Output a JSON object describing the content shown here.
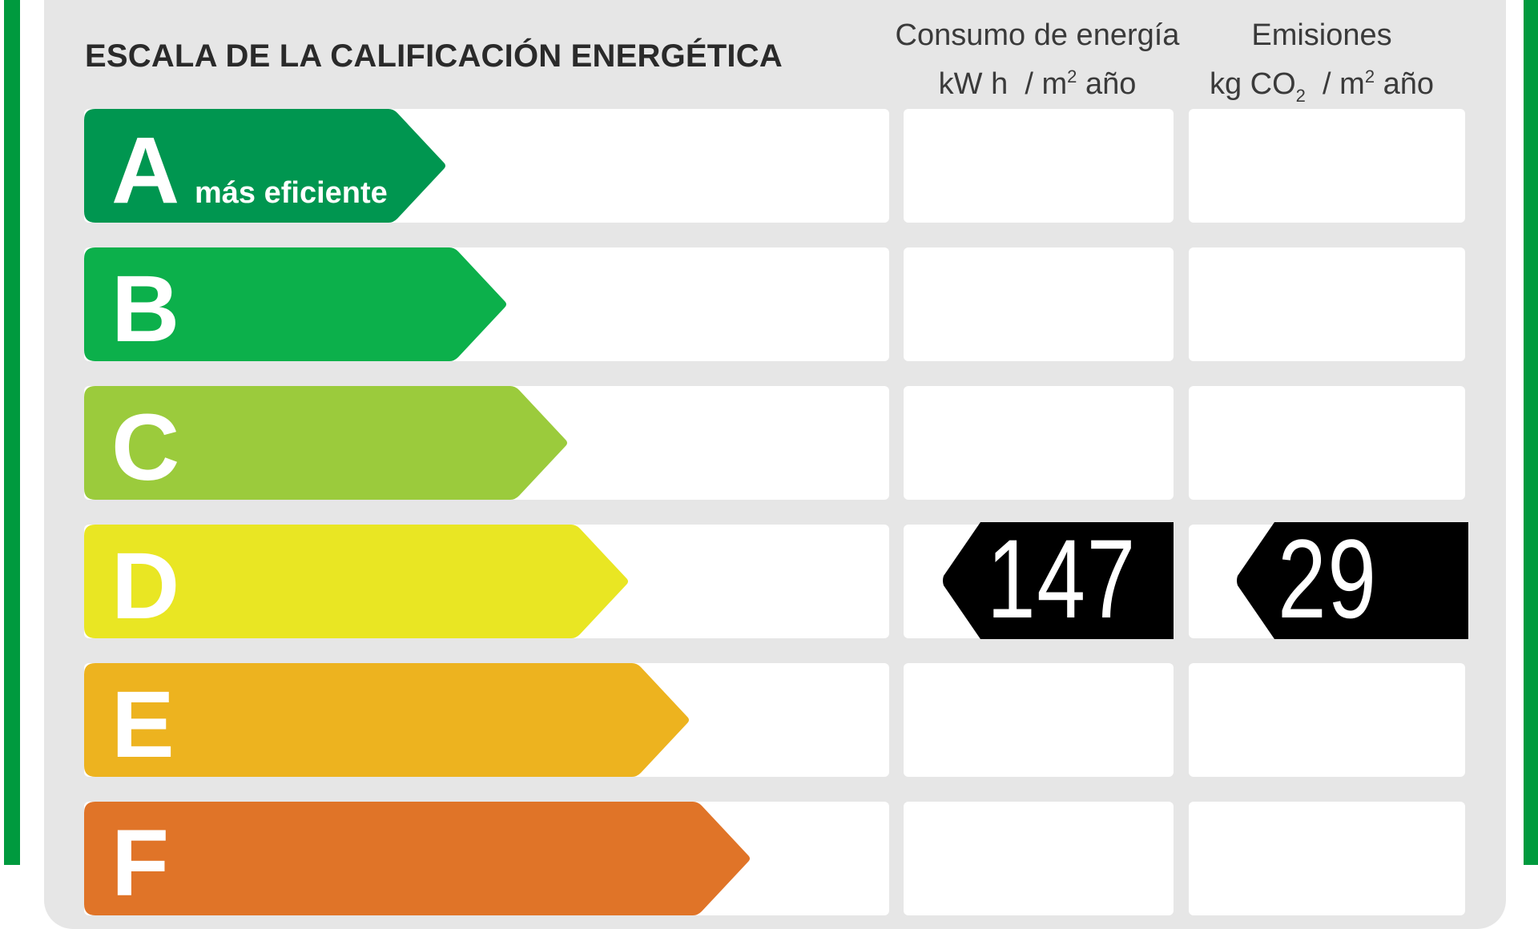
{
  "title": "ESCALA DE LA CALIFICACIÓN ENERGÉTICA",
  "columns": {
    "energy": {
      "line1": "Consumo de energía",
      "unit_a": "kW h",
      "unit_sep": "/ m",
      "unit_exp": "2",
      "unit_b": "año"
    },
    "emissions": {
      "line1": "Emisiones",
      "unit_a": "kg CO",
      "unit_sub": "2",
      "unit_sep": "/ m",
      "unit_exp": "2",
      "unit_b": "año"
    }
  },
  "ratings": [
    {
      "letter": "A",
      "sublabel": "más eficiente",
      "color": "#009650"
    },
    {
      "letter": "B",
      "sublabel": "",
      "color": "#0cb04b"
    },
    {
      "letter": "C",
      "sublabel": "",
      "color": "#9bcb3c"
    },
    {
      "letter": "D",
      "sublabel": "",
      "color": "#e9e623"
    },
    {
      "letter": "E",
      "sublabel": "",
      "color": "#edb31f"
    },
    {
      "letter": "F",
      "sublabel": "",
      "color": "#e07428"
    }
  ],
  "current": {
    "rating": "D",
    "energy_value": "147",
    "emissions_value": "29",
    "tag_color": "#000000"
  },
  "colors": {
    "frame_green": "#009a3e",
    "panel_gray": "#e6e6e6"
  }
}
